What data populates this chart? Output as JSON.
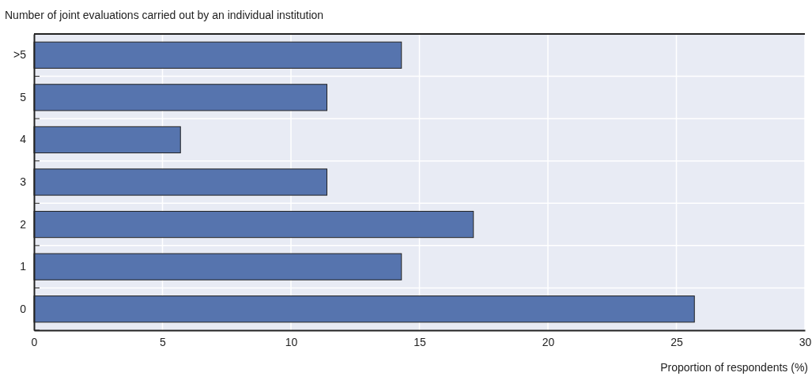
{
  "chart_data": {
    "type": "bar",
    "orientation": "horizontal",
    "title": "Number of joint evaluations carried out by an individual institution",
    "xlabel": "Proportion of respondents (%)",
    "categories": [
      ">5",
      "5",
      "4",
      "3",
      "2",
      "1",
      "0"
    ],
    "values": [
      14.3,
      11.4,
      5.7,
      11.4,
      17.1,
      14.3,
      25.7
    ],
    "color": "#5674ae",
    "xlim": [
      0,
      30
    ],
    "xticks": [
      0,
      5,
      10,
      15,
      20,
      25,
      30
    ],
    "grid": true
  }
}
